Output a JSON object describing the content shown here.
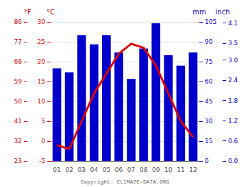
{
  "chart_data": {
    "type": "bar",
    "categories": [
      "01",
      "02",
      "03",
      "04",
      "05",
      "06",
      "07",
      "08",
      "09",
      "10",
      "11",
      "12"
    ],
    "series": [
      {
        "type": "bar",
        "color": "#0000cc",
        "values": [
          70,
          67,
          95,
          88,
          95,
          82,
          62,
          85,
          104,
          80,
          72,
          82
        ]
      },
      {
        "type": "line",
        "color": "#dd0000",
        "axis": "y2",
        "values": [
          -1,
          -2,
          5,
          12,
          17,
          22,
          24.5,
          23.5,
          19,
          12,
          5,
          1
        ]
      }
    ],
    "ylim": [
      0,
      105
    ],
    "yticks": [
      0,
      15,
      30,
      45,
      60,
      75,
      90,
      105
    ],
    "ylabel": "mm",
    "y2lim": [
      -5,
      30
    ],
    "y2ticks": [
      -5,
      0,
      5,
      10,
      15,
      20,
      25,
      30
    ],
    "y2label": "°C",
    "y3lim": [
      23,
      86
    ],
    "y3ticks": [
      23,
      32,
      41,
      50,
      59,
      68,
      77,
      86
    ],
    "y3label": "°F",
    "y4lim": [
      0,
      105
    ],
    "y4ticks": [
      {
        "value": 0,
        "label": "0.0"
      },
      {
        "value": 15.24,
        "label": "0.6"
      },
      {
        "value": 30.48,
        "label": "1.2"
      },
      {
        "value": 45.72,
        "label": "1.8"
      },
      {
        "value": 60.96,
        "label": "2.4"
      },
      {
        "value": 76.2,
        "label": "3.0"
      },
      {
        "value": 88.9,
        "label": "3.5"
      },
      {
        "value": 104.14,
        "label": "4.1"
      }
    ],
    "y4label": "inch",
    "grid": true,
    "annotations": [
      "Copyright: CLIMATE-DATA.ORG"
    ]
  }
}
